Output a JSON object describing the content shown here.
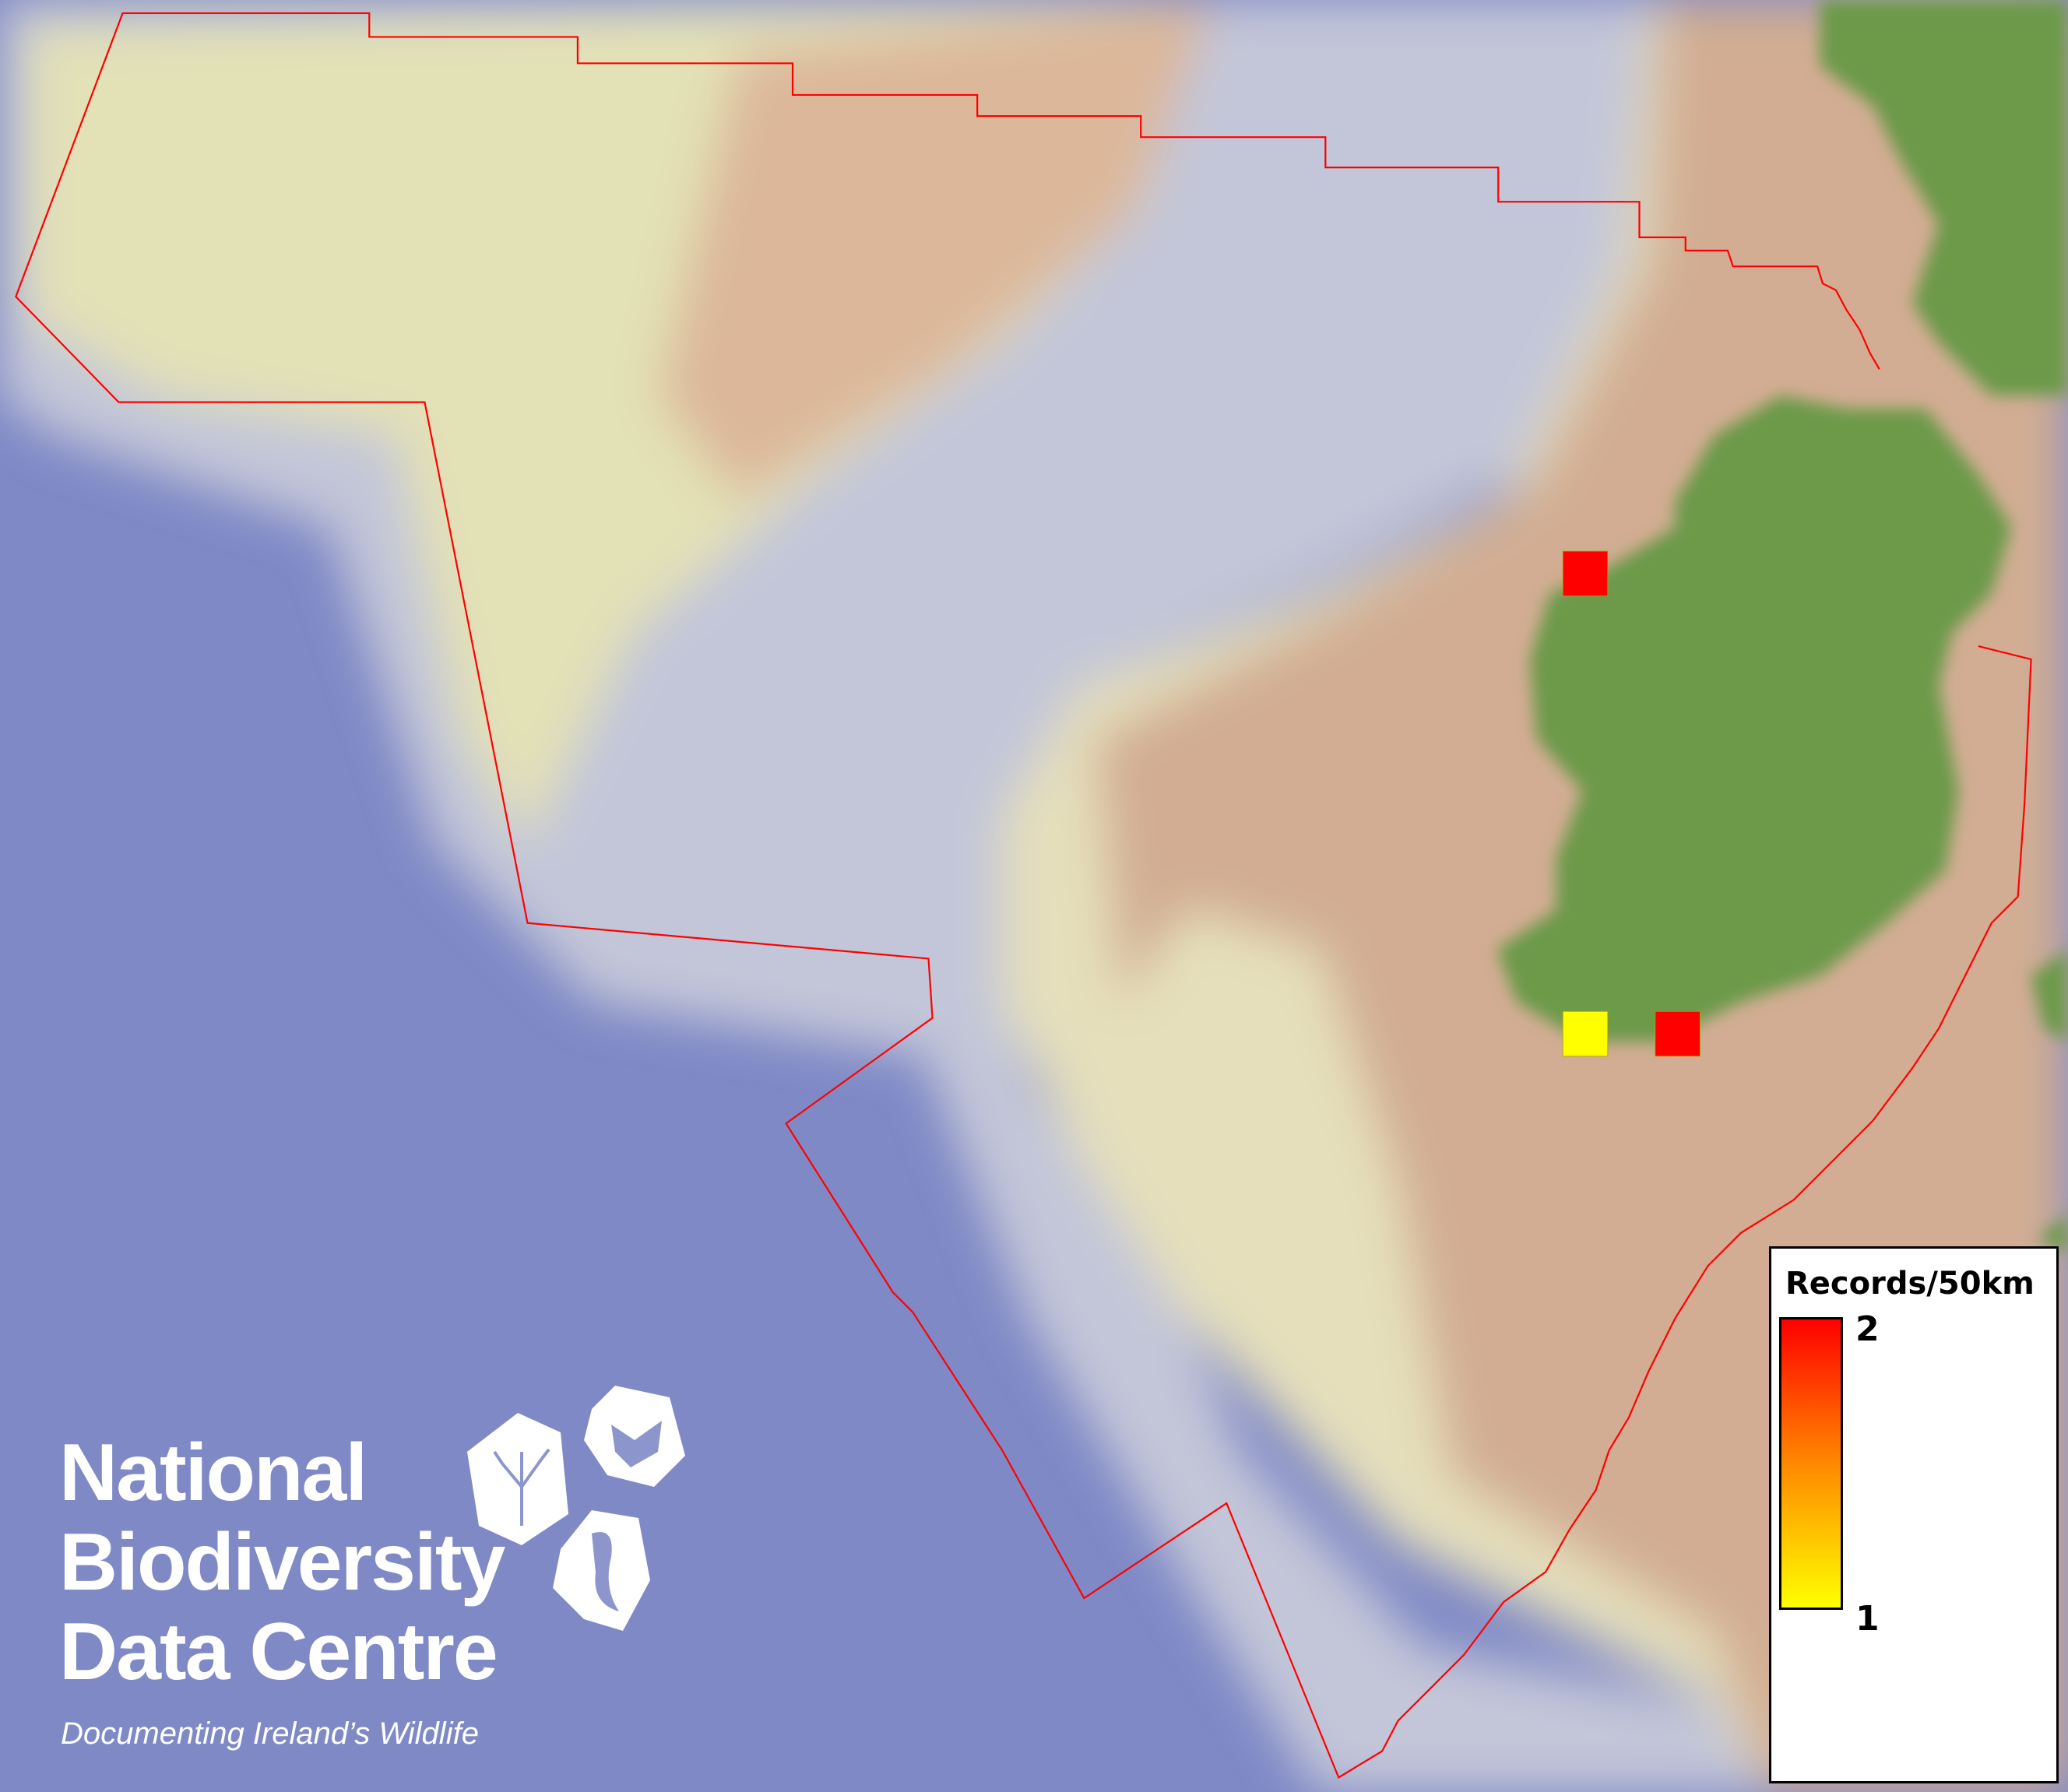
{
  "map": {
    "colors": {
      "deep_ocean": "#7f89c6",
      "slope": "#c7c9d6",
      "shelf_light": "#e4e2b8",
      "shelf": "#d1ad93",
      "land": "#6c9a48",
      "boundary": "#ff0000"
    },
    "grid_squares": [
      {
        "label": "north-west",
        "records": 2,
        "color": "#ff0000"
      },
      {
        "label": "south-west",
        "records": 1,
        "color": "#ffff00"
      },
      {
        "label": "south",
        "records": 2,
        "color": "#ff0000"
      }
    ]
  },
  "legend": {
    "title": "Records/50km",
    "max_label": "2",
    "min_label": "1",
    "color_max": "#ff0000",
    "color_min": "#ffff00"
  },
  "logo": {
    "line1": "National",
    "line2": "Biodiversity",
    "line3": "Data Centre",
    "tagline": "Documenting Ireland’s Wildlife"
  }
}
